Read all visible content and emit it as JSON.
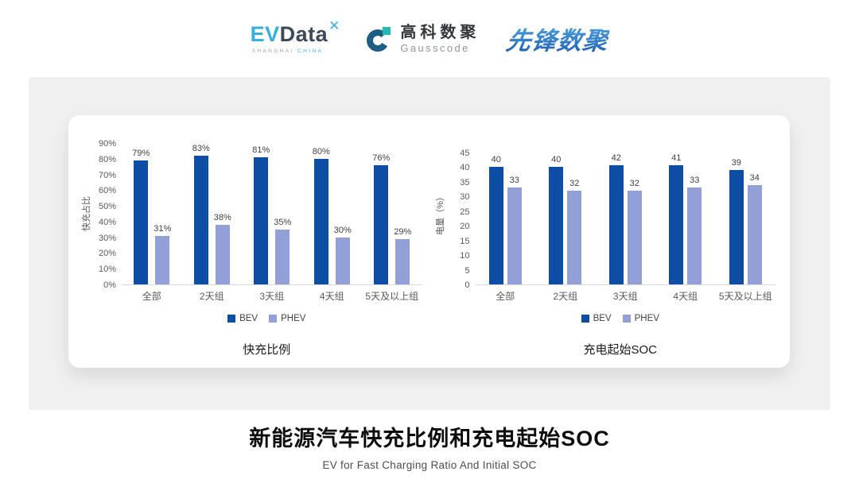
{
  "header": {
    "evdata": {
      "ev": "EV",
      "data": "Data",
      "mark": "✕",
      "sub_left": "SHANGHAI",
      "sub_right": "CHINA"
    },
    "gausscode": {
      "name_cn": "高科数聚",
      "name_en": "Gausscode"
    },
    "pioneer": {
      "text": "先锋数聚"
    }
  },
  "colors": {
    "bev": "#0d4da3",
    "phev": "#92a0d7",
    "panel": "#f0f0f0",
    "baseline": "#d9d9d9",
    "tick_text": "#595959"
  },
  "chart_data": [
    {
      "type": "bar",
      "title": "快充比例",
      "ylabel": "快充占比",
      "categories": [
        "全部",
        "2天组",
        "3天组",
        "4天组",
        "5天及以上组"
      ],
      "series": [
        {
          "name": "BEV",
          "values": [
            79,
            83,
            81,
            80,
            76
          ],
          "labels": [
            "79%",
            "83%",
            "81%",
            "80%",
            "76%"
          ],
          "color": "#0d4da3"
        },
        {
          "name": "PHEV",
          "values": [
            31,
            38,
            35,
            30,
            29
          ],
          "labels": [
            "31%",
            "38%",
            "35%",
            "30%",
            "29%"
          ],
          "color": "#92a0d7"
        }
      ],
      "ylim": [
        0,
        90
      ],
      "yticks": [
        "90%",
        "80%",
        "70%",
        "60%",
        "50%",
        "40%",
        "30%",
        "20%",
        "10%",
        "0%"
      ],
      "legend": [
        "BEV",
        "PHEV"
      ],
      "legend_position": "bottom",
      "grid": false
    },
    {
      "type": "bar",
      "title": "充电起始SOC",
      "ylabel": "电量（%）",
      "categories": [
        "全部",
        "2天组",
        "3天组",
        "4天组",
        "5天及以上组"
      ],
      "series": [
        {
          "name": "BEV",
          "values": [
            40,
            40,
            42,
            41,
            39
          ],
          "labels": [
            "40",
            "40",
            "42",
            "41",
            "39"
          ],
          "color": "#0d4da3"
        },
        {
          "name": "PHEV",
          "values": [
            33,
            32,
            32,
            33,
            34
          ],
          "labels": [
            "33",
            "32",
            "32",
            "33",
            "34"
          ],
          "color": "#92a0d7"
        }
      ],
      "ylim": [
        0,
        45
      ],
      "yticks": [
        "45",
        "40",
        "35",
        "30",
        "25",
        "20",
        "15",
        "10",
        "5",
        "0"
      ],
      "legend": [
        "BEV",
        "PHEV"
      ],
      "legend_position": "bottom",
      "grid": false
    }
  ],
  "footer": {
    "title": "新能源汽车快充比例和充电起始SOC",
    "subtitle": "EV for Fast Charging Ratio And Initial SOC"
  }
}
